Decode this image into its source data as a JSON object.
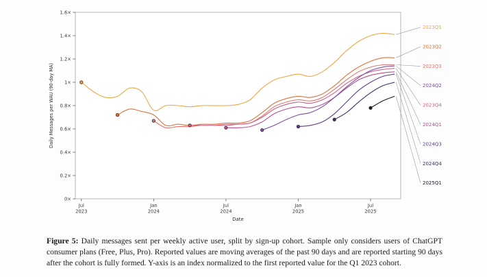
{
  "figure": {
    "label": "Figure 5:",
    "caption": " Daily messages sent per weekly active user, split by sign-up cohort. Sample only considers users of ChatGPT consumer plans (Free, Plus, Pro). Reported values are moving averages of the past 90 days and are reported starting 90 days after the cohort is fully formed. Y-axis is an index normalized to the first reported value for the Q1 2023 cohort."
  },
  "chart_data": {
    "type": "line",
    "title": "",
    "xlabel": "Date",
    "ylabel": "Daily Messages per WAU (90-day MA)",
    "ylim": [
      0,
      1.6
    ],
    "ytick_values": [
      0,
      0.2,
      0.4,
      0.6,
      0.8,
      1.0,
      1.2,
      1.4,
      1.6
    ],
    "ytick_labels": [
      "0×",
      "0.2×",
      "0.4×",
      "0.6×",
      "0.8×",
      "1×",
      "1.2×",
      "1.4×",
      "1.6×"
    ],
    "x_unit": "months since 2023-07",
    "x_range": [
      -0.5,
      26.5
    ],
    "xtick_months": [
      0,
      6,
      12,
      18,
      24
    ],
    "xtick_labels": [
      [
        "Jul",
        "2023"
      ],
      [
        "Jan",
        "2024"
      ],
      [
        "Jul",
        "2024"
      ],
      [
        "Jan",
        "2025"
      ],
      [
        "Jul",
        "2025"
      ]
    ],
    "grid": false,
    "legend_position": "right-outside",
    "legend_order": [
      "2023Q1",
      "2023Q2",
      "2023Q3",
      "2024Q2",
      "2023Q4",
      "2024Q1",
      "2024Q3",
      "2024Q4",
      "2025Q1"
    ],
    "note": "index normalized to first reported value of 2023Q1 cohort; dot marks first reported value of each cohort",
    "series": [
      {
        "name": "2023Q1",
        "color": "#F2A63C",
        "start_month": 0,
        "values": [
          1.0,
          0.92,
          0.87,
          0.88,
          0.95,
          0.92,
          0.76,
          0.8,
          0.8,
          0.79,
          0.8,
          0.8,
          0.8,
          0.81,
          0.85,
          0.95,
          1.02,
          1.05,
          1.07,
          1.05,
          1.09,
          1.17,
          1.27,
          1.35,
          1.4,
          1.42,
          1.41
        ]
      },
      {
        "name": "2023Q2",
        "color": "#E2703A",
        "start_month": 3,
        "values": [
          0.72,
          0.77,
          0.75,
          0.72,
          0.63,
          0.64,
          0.63,
          0.64,
          0.64,
          0.65,
          0.65,
          0.67,
          0.74,
          0.82,
          0.86,
          0.88,
          0.87,
          0.9,
          0.97,
          1.06,
          1.13,
          1.18,
          1.21,
          1.21
        ]
      },
      {
        "name": "2023Q3",
        "color": "#E0756B",
        "start_month": 6,
        "values": [
          0.67,
          0.61,
          0.62,
          0.62,
          0.63,
          0.63,
          0.64,
          0.64,
          0.65,
          0.71,
          0.79,
          0.83,
          0.85,
          0.84,
          0.87,
          0.94,
          1.02,
          1.09,
          1.13,
          1.15,
          1.15
        ]
      },
      {
        "name": "2023Q4",
        "color": "#D25F87",
        "start_month": 9,
        "values": [
          0.63,
          0.63,
          0.63,
          0.63,
          0.64,
          0.65,
          0.7,
          0.77,
          0.81,
          0.83,
          0.82,
          0.85,
          0.91,
          0.99,
          1.05,
          1.09,
          1.11,
          1.12
        ]
      },
      {
        "name": "2024Q1",
        "color": "#BE4C8F",
        "start_month": 12,
        "values": [
          0.61,
          0.61,
          0.62,
          0.66,
          0.73,
          0.77,
          0.79,
          0.78,
          0.81,
          0.87,
          0.95,
          1.02,
          1.06,
          1.08,
          1.09
        ]
      },
      {
        "name": "2024Q2",
        "color": "#7E4FA5",
        "start_month": 15,
        "values": [
          0.59,
          0.63,
          0.68,
          0.72,
          0.74,
          0.79,
          0.87,
          0.96,
          1.04,
          1.1,
          1.13,
          1.14
        ]
      },
      {
        "name": "2024Q3",
        "color": "#5B3A8E",
        "start_month": 18,
        "values": [
          0.62,
          0.63,
          0.66,
          0.73,
          0.83,
          0.93,
          1.0,
          1.05,
          1.07
        ]
      },
      {
        "name": "2024Q4",
        "color": "#3D2B66",
        "start_month": 21,
        "values": [
          0.68,
          0.74,
          0.83,
          0.91,
          0.97,
          1.0
        ]
      },
      {
        "name": "2025Q1",
        "color": "#1C1A24",
        "start_month": 24,
        "values": [
          0.78,
          0.84,
          0.88
        ]
      }
    ]
  }
}
